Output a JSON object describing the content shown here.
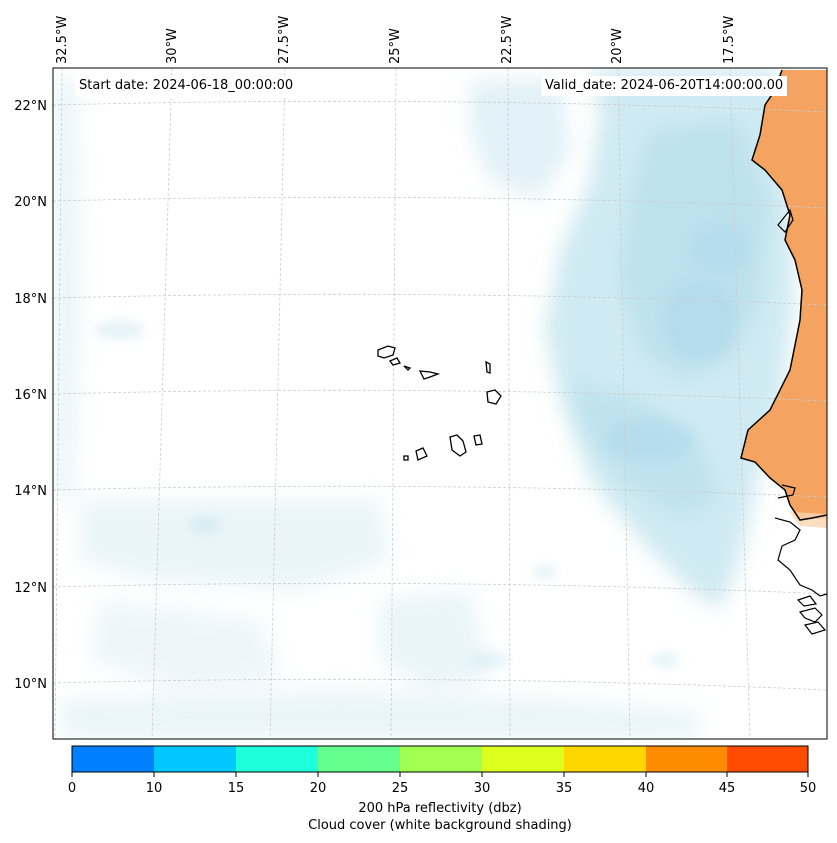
{
  "map": {
    "start_date": "Start date: 2024-06-18_00:00:00",
    "valid_date": "Valid_date: 2024-06-20T14:00:00.00",
    "lon_labels": [
      "32.5°W",
      "30°W",
      "27.5°W",
      "25°W",
      "22.5°W",
      "20°W",
      "17.5°W"
    ],
    "lat_labels": [
      "22°N",
      "20°N",
      "18°N",
      "16°N",
      "14°N",
      "12°N",
      "10°N"
    ],
    "land_color": "#f4a460",
    "cloud_color": "#a8d8e8",
    "coastline_color": "#000000",
    "gridlines": true
  },
  "colorbar": {
    "title": "200 hPa reflectivity (dbz)",
    "subtitle": "Cloud cover (white background shading)",
    "ticks": [
      "0",
      "10",
      "15",
      "20",
      "25",
      "30",
      "35",
      "40",
      "45",
      "50"
    ],
    "colors": [
      "#0080ff",
      "#00c8ff",
      "#1effdc",
      "#64ff8c",
      "#a0ff50",
      "#dcff1e",
      "#ffd700",
      "#ff8c00",
      "#ff4c00"
    ]
  }
}
